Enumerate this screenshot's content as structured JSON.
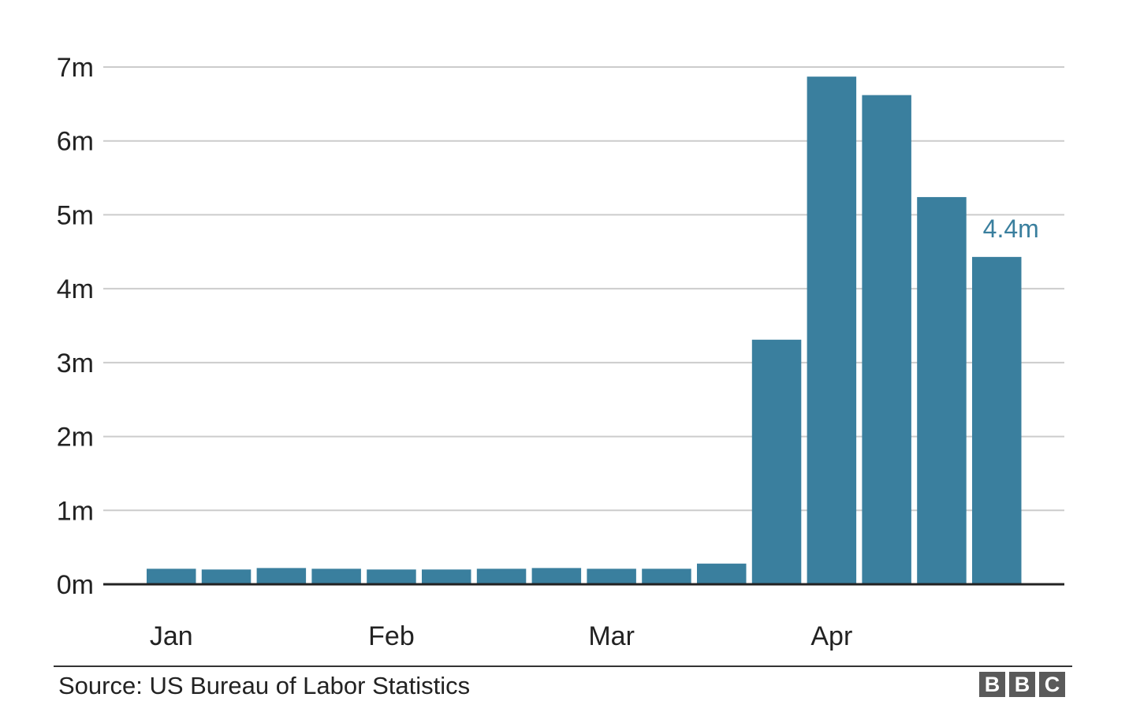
{
  "chart_data": {
    "type": "bar",
    "title": "",
    "xlabel": "",
    "ylabel": "",
    "ylim": [
      0,
      7
    ],
    "yticks": [
      {
        "value": 0,
        "label": "0m"
      },
      {
        "value": 1,
        "label": "1m"
      },
      {
        "value": 2,
        "label": "2m"
      },
      {
        "value": 3,
        "label": "3m"
      },
      {
        "value": 4,
        "label": "4m"
      },
      {
        "value": 5,
        "label": "5m"
      },
      {
        "value": 6,
        "label": "6m"
      },
      {
        "value": 7,
        "label": "7m"
      }
    ],
    "month_labels": [
      {
        "label": "Jan",
        "bar_index": 0
      },
      {
        "label": "Feb",
        "bar_index": 4
      },
      {
        "label": "Mar",
        "bar_index": 8
      },
      {
        "label": "Apr",
        "bar_index": 12
      }
    ],
    "values": [
      0.21,
      0.2,
      0.22,
      0.21,
      0.2,
      0.2,
      0.21,
      0.22,
      0.21,
      0.21,
      0.28,
      3.31,
      6.87,
      6.62,
      5.24,
      4.43
    ],
    "annotations": [
      {
        "bar_index": 15,
        "text": "4.4m"
      }
    ],
    "grid": true,
    "bar_color": "#3a7f9e",
    "label_color": "#3a7f9e",
    "grid_color": "#cccccc",
    "baseline_color": "#222222"
  },
  "footer": {
    "source": "Source: US Bureau of Labor Statistics",
    "logo_letters": [
      "B",
      "B",
      "C"
    ]
  }
}
